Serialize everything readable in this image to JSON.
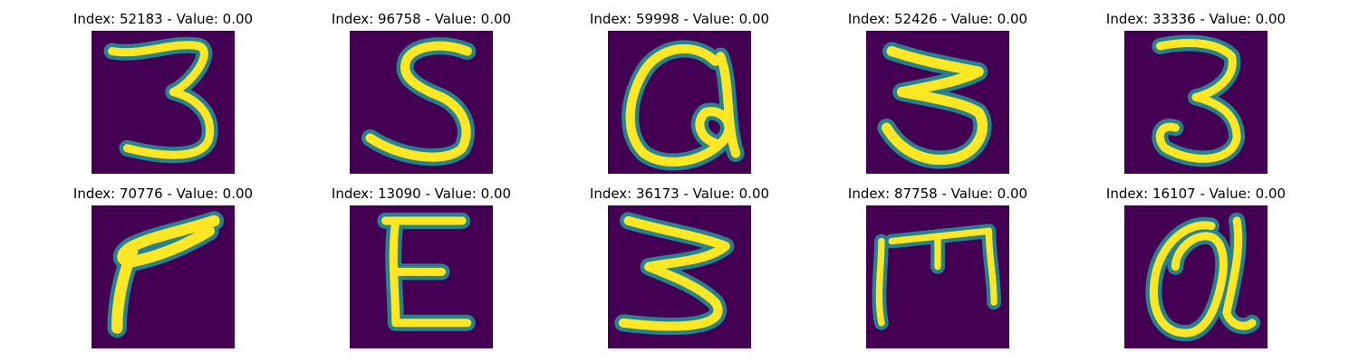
{
  "colors": {
    "background": "#440154",
    "stroke_outer": "#26828e",
    "stroke_mid": "#6ece58",
    "stroke_core": "#fde725"
  },
  "panels": [
    {
      "title": "Index: 52183 - Value: 0.00",
      "shape": "digit-3-glyph"
    },
    {
      "title": "Index: 96758 - Value: 0.00",
      "shape": "digit-5-glyph"
    },
    {
      "title": "Index: 59998 - Value: 0.00",
      "shape": "at-sign-glyph"
    },
    {
      "title": "Index: 52426 - Value: 0.00",
      "shape": "digit-3-glyph"
    },
    {
      "title": "Index: 33336 - Value: 0.00",
      "shape": "digit-3-glyph"
    },
    {
      "title": "Index: 70776 - Value: 0.00",
      "shape": "digit-7-glyph"
    },
    {
      "title": "Index: 13090 - Value: 0.00",
      "shape": "letter-e-glyph"
    },
    {
      "title": "Index: 36173 - Value: 0.00",
      "shape": "digit-3-glyph"
    },
    {
      "title": "Index: 87758 - Value: 0.00",
      "shape": "letter-m-glyph"
    },
    {
      "title": "Index: 16107 - Value: 0.00",
      "shape": "at-sign-glyph"
    }
  ]
}
